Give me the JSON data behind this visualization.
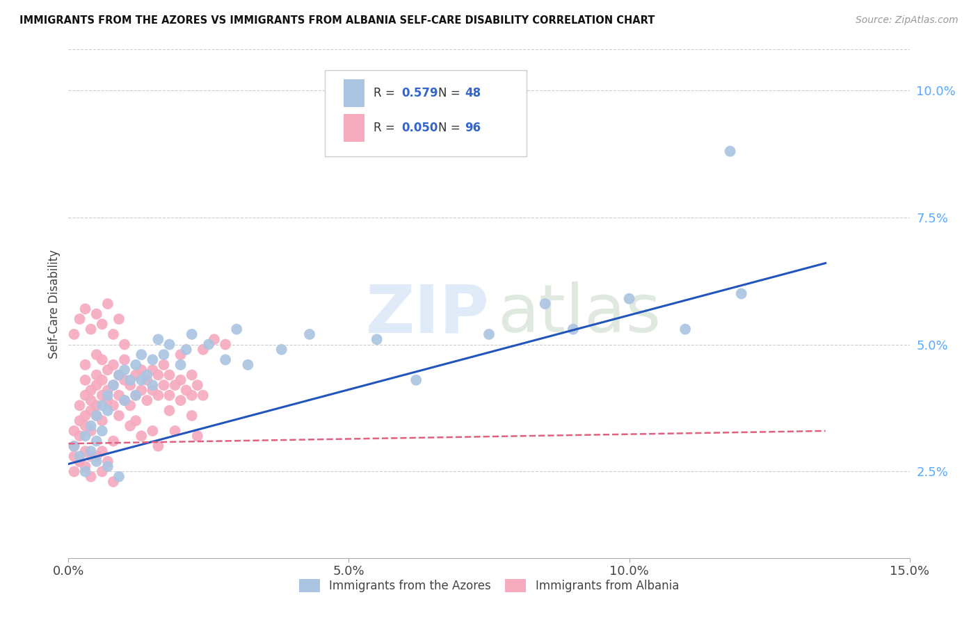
{
  "title": "IMMIGRANTS FROM THE AZORES VS IMMIGRANTS FROM ALBANIA SELF-CARE DISABILITY CORRELATION CHART",
  "source": "Source: ZipAtlas.com",
  "ylabel": "Self-Care Disability",
  "xlim": [
    0.0,
    0.15
  ],
  "ylim": [
    0.008,
    0.108
  ],
  "xticks": [
    0.0,
    0.05,
    0.1,
    0.15
  ],
  "xtick_labels": [
    "0.0%",
    "5.0%",
    "10.0%",
    "15.0%"
  ],
  "yticks": [
    0.025,
    0.05,
    0.075,
    0.1
  ],
  "ytick_labels": [
    "2.5%",
    "5.0%",
    "7.5%",
    "10.0%"
  ],
  "azores_R": 0.579,
  "azores_N": 48,
  "albania_R": 0.05,
  "albania_N": 96,
  "azores_color": "#aac4e2",
  "albania_color": "#f5aabe",
  "azores_line_color": "#2255bb",
  "albania_line_color": "#e06080",
  "legend_label_azores": "Immigrants from the Azores",
  "legend_label_albania": "Immigrants from Albania",
  "background_color": "#ffffff",
  "grid_color": "#cccccc",
  "azores_x": [
    0.001,
    0.002,
    0.003,
    0.004,
    0.004,
    0.005,
    0.005,
    0.006,
    0.006,
    0.007,
    0.007,
    0.008,
    0.009,
    0.01,
    0.01,
    0.011,
    0.012,
    0.013,
    0.014,
    0.015,
    0.016,
    0.017,
    0.018,
    0.02,
    0.021,
    0.022,
    0.015,
    0.012,
    0.013,
    0.025,
    0.028,
    0.03,
    0.032,
    0.038,
    0.043,
    0.055,
    0.062,
    0.075,
    0.085,
    0.09,
    0.1,
    0.11,
    0.12,
    0.118,
    0.003,
    0.005,
    0.007,
    0.009
  ],
  "azores_y": [
    0.03,
    0.028,
    0.032,
    0.034,
    0.029,
    0.036,
    0.031,
    0.038,
    0.033,
    0.037,
    0.04,
    0.042,
    0.044,
    0.045,
    0.039,
    0.043,
    0.046,
    0.048,
    0.044,
    0.047,
    0.051,
    0.048,
    0.05,
    0.046,
    0.049,
    0.052,
    0.042,
    0.04,
    0.043,
    0.05,
    0.047,
    0.053,
    0.046,
    0.049,
    0.052,
    0.051,
    0.043,
    0.052,
    0.058,
    0.053,
    0.059,
    0.053,
    0.06,
    0.088,
    0.025,
    0.027,
    0.026,
    0.024
  ],
  "albania_x": [
    0.001,
    0.001,
    0.001,
    0.002,
    0.002,
    0.002,
    0.002,
    0.003,
    0.003,
    0.003,
    0.003,
    0.003,
    0.004,
    0.004,
    0.004,
    0.004,
    0.005,
    0.005,
    0.005,
    0.005,
    0.006,
    0.006,
    0.006,
    0.006,
    0.007,
    0.007,
    0.007,
    0.008,
    0.008,
    0.008,
    0.009,
    0.009,
    0.009,
    0.01,
    0.01,
    0.01,
    0.011,
    0.011,
    0.012,
    0.012,
    0.013,
    0.013,
    0.014,
    0.014,
    0.015,
    0.015,
    0.016,
    0.016,
    0.017,
    0.017,
    0.018,
    0.018,
    0.019,
    0.02,
    0.02,
    0.021,
    0.022,
    0.022,
    0.023,
    0.024,
    0.001,
    0.002,
    0.003,
    0.004,
    0.005,
    0.006,
    0.007,
    0.008,
    0.009,
    0.01,
    0.001,
    0.002,
    0.003,
    0.004,
    0.005,
    0.006,
    0.007,
    0.008,
    0.024,
    0.026,
    0.028,
    0.02,
    0.003,
    0.005,
    0.012,
    0.015,
    0.018,
    0.022,
    0.013,
    0.011,
    0.008,
    0.006,
    0.004,
    0.016,
    0.019,
    0.023
  ],
  "albania_y": [
    0.03,
    0.033,
    0.028,
    0.035,
    0.032,
    0.038,
    0.027,
    0.034,
    0.036,
    0.04,
    0.029,
    0.043,
    0.037,
    0.041,
    0.033,
    0.039,
    0.038,
    0.042,
    0.036,
    0.044,
    0.04,
    0.043,
    0.035,
    0.047,
    0.039,
    0.041,
    0.045,
    0.038,
    0.042,
    0.046,
    0.036,
    0.04,
    0.044,
    0.039,
    0.043,
    0.047,
    0.038,
    0.042,
    0.04,
    0.044,
    0.041,
    0.045,
    0.039,
    0.043,
    0.041,
    0.045,
    0.04,
    0.044,
    0.042,
    0.046,
    0.04,
    0.044,
    0.042,
    0.039,
    0.043,
    0.041,
    0.04,
    0.044,
    0.042,
    0.04,
    0.052,
    0.055,
    0.057,
    0.053,
    0.056,
    0.054,
    0.058,
    0.052,
    0.055,
    0.05,
    0.025,
    0.027,
    0.026,
    0.024,
    0.028,
    0.025,
    0.027,
    0.023,
    0.049,
    0.051,
    0.05,
    0.048,
    0.046,
    0.048,
    0.035,
    0.033,
    0.037,
    0.036,
    0.032,
    0.034,
    0.031,
    0.029,
    0.028,
    0.03,
    0.033,
    0.032
  ],
  "azores_line_x": [
    0.0,
    0.135
  ],
  "azores_line_y": [
    0.0265,
    0.066
  ],
  "albania_line_x": [
    0.0,
    0.135
  ],
  "albania_line_y": [
    0.0305,
    0.033
  ],
  "legend_r_color": "#3366cc",
  "legend_n_color": "#ff4444"
}
